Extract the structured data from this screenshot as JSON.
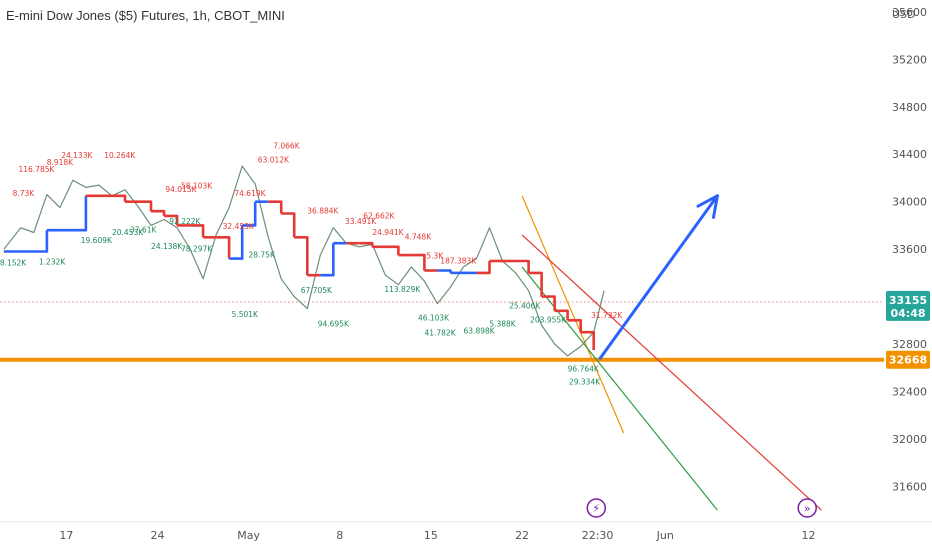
{
  "chart_data": {
    "type": "line",
    "title": "E-mini Dow Jones ($5) Futures, 1h, CBOT_MINI",
    "currency": "USD",
    "ylim": [
      31300,
      35700
    ],
    "y_ticks": [
      31600,
      32000,
      32400,
      32800,
      33200,
      33600,
      34000,
      34400,
      34800,
      35200,
      35600
    ],
    "x_ticks": [
      {
        "label": "17",
        "t": 3.5
      },
      {
        "label": "24",
        "t": 10.5
      },
      {
        "label": "May",
        "t": 17.5
      },
      {
        "label": "8",
        "t": 24.5
      },
      {
        "label": "15",
        "t": 31.5
      },
      {
        "label": "22",
        "t": 38.5
      },
      {
        "label": "22:30",
        "t": 44.3
      },
      {
        "label": "Jun",
        "t": 49.5
      },
      {
        "label": "12",
        "t": 60.5
      }
    ],
    "x_range": [
      -1.6,
      66.3
    ],
    "price": {
      "t": [
        -1.3,
        0,
        1,
        2,
        3,
        4,
        5,
        6,
        7,
        8,
        9,
        10,
        11,
        12,
        13,
        14,
        15,
        16,
        17,
        18,
        19,
        20,
        21,
        22,
        23,
        24,
        25,
        26,
        27,
        28,
        29,
        30,
        31,
        32,
        33,
        34,
        35,
        36,
        37,
        38,
        39,
        40,
        41,
        42,
        43,
        44,
        44.8
      ],
      "y": [
        33600,
        33780,
        33740,
        34060,
        33950,
        34180,
        34120,
        34140,
        34050,
        34100,
        33960,
        33800,
        33850,
        33780,
        33600,
        33350,
        33720,
        33950,
        34300,
        34150,
        33700,
        33350,
        33200,
        33100,
        33550,
        33780,
        33650,
        33620,
        33640,
        33380,
        33300,
        33450,
        33330,
        33140,
        33280,
        33450,
        33520,
        33780,
        33500,
        33400,
        33250,
        32960,
        32800,
        32700,
        32780,
        32900,
        33250
      ]
    },
    "supertrend": {
      "t": [
        -1.3,
        1,
        2,
        4,
        5,
        7,
        8,
        9.5,
        10,
        11,
        12,
        13,
        14,
        15,
        16,
        17,
        18,
        19,
        20,
        21,
        22,
        23,
        24,
        25,
        26,
        27,
        28,
        29,
        30,
        31,
        32,
        33,
        34,
        35,
        36,
        37,
        38,
        39,
        40,
        41,
        42,
        43,
        44
      ],
      "y": [
        33580,
        33580,
        33760,
        33760,
        34050,
        34050,
        34000,
        34000,
        33920,
        33880,
        33800,
        33800,
        33700,
        33700,
        33520,
        33800,
        34000,
        34000,
        33900,
        33700,
        33380,
        33380,
        33650,
        33650,
        33650,
        33620,
        33620,
        33550,
        33550,
        33420,
        33420,
        33400,
        33400,
        33400,
        33500,
        33500,
        33500,
        33400,
        33200,
        33080,
        33000,
        32900,
        32750
      ],
      "colors": [
        "#2962ff",
        "#2962ff",
        "#2962ff",
        "#2962ff",
        "#e53935",
        "#e53935",
        "#e53935",
        "#e53935",
        "#e53935",
        "#e53935",
        "#e53935",
        "#e53935",
        "#e53935",
        "#e53935",
        "#2962ff",
        "#2962ff",
        "#2962ff",
        "#e53935",
        "#e53935",
        "#e53935",
        "#e53935",
        "#2962ff",
        "#2962ff",
        "#e53935",
        "#e53935",
        "#e53935",
        "#e53935",
        "#e53935",
        "#e53935",
        "#e53935",
        "#2962ff",
        "#2962ff",
        "#2962ff",
        "#e53935",
        "#e53935",
        "#e53935",
        "#e53935",
        "#e53935",
        "#e53935",
        "#e53935",
        "#e53935",
        "#e53935"
      ]
    },
    "support_level": {
      "value": 32668,
      "label": "32668",
      "color": "#f39200"
    },
    "current_price": {
      "value": 33155,
      "label": "33155",
      "countdown": "04:48",
      "color": "#26a69a"
    },
    "projection_arrow": {
      "from": [
        44.5,
        32680
      ],
      "to": [
        53.5,
        34050
      ],
      "color": "#2962ff"
    },
    "channel_lines": [
      {
        "from": [
          38.5,
          34050
        ],
        "to": [
          46.3,
          32050
        ],
        "color": "#f39200"
      },
      {
        "from": [
          38.5,
          33450
        ],
        "to": [
          53.5,
          31400
        ],
        "color": "#2e9b3c"
      },
      {
        "from": [
          38.5,
          33720
        ],
        "to": [
          61.5,
          31400
        ],
        "color": "#e53935"
      }
    ],
    "volume_labels": [
      {
        "text": "8.73K",
        "t": 0.2,
        "y": 34050,
        "color": "#e53935"
      },
      {
        "text": "116.785K",
        "t": 1.2,
        "y": 34250,
        "color": "#e53935"
      },
      {
        "text": "8.918K",
        "t": 3.0,
        "y": 34310,
        "color": "#e53935"
      },
      {
        "text": "24.133K",
        "t": 4.3,
        "y": 34370,
        "color": "#e53935"
      },
      {
        "text": "10.264K",
        "t": 7.6,
        "y": 34370,
        "color": "#e53935"
      },
      {
        "text": "94.015K",
        "t": 12.3,
        "y": 34080,
        "color": "#e53935"
      },
      {
        "text": "58.103K",
        "t": 13.5,
        "y": 34110,
        "color": "#e53935"
      },
      {
        "text": "74.619K",
        "t": 17.6,
        "y": 34050,
        "color": "#e53935"
      },
      {
        "text": "7.066K",
        "t": 20.4,
        "y": 34450,
        "color": "#e53935"
      },
      {
        "text": "63.012K",
        "t": 19.4,
        "y": 34330,
        "color": "#e53935"
      },
      {
        "text": "32.453K",
        "t": 16.7,
        "y": 33770,
        "color": "#e53935"
      },
      {
        "text": "36.884K",
        "t": 23.2,
        "y": 33900,
        "color": "#e53935"
      },
      {
        "text": "33.491K",
        "t": 26.1,
        "y": 33810,
        "color": "#e53935"
      },
      {
        "text": "62.662K",
        "t": 27.5,
        "y": 33860,
        "color": "#e53935"
      },
      {
        "text": "24.941K",
        "t": 28.2,
        "y": 33720,
        "color": "#e53935"
      },
      {
        "text": "4.748K",
        "t": 30.5,
        "y": 33680,
        "color": "#e53935"
      },
      {
        "text": "5.3K",
        "t": 31.8,
        "y": 33520,
        "color": "#e53935"
      },
      {
        "text": "187.383K",
        "t": 33.6,
        "y": 33480,
        "color": "#e53935"
      },
      {
        "text": "31.732K",
        "t": 45.0,
        "y": 33020,
        "color": "#e53935"
      },
      {
        "text": "1.232K",
        "t": 2.4,
        "y": 33470,
        "color": "#1e8a5a"
      },
      {
        "text": "8.152K",
        "t": -0.6,
        "y": 33460,
        "color": "#1e8a5a"
      },
      {
        "text": "19.609K",
        "t": 5.8,
        "y": 33650,
        "color": "#1e8a5a"
      },
      {
        "text": "20.453K",
        "t": 8.2,
        "y": 33720,
        "color": "#1e8a5a"
      },
      {
        "text": "37.61K",
        "t": 9.4,
        "y": 33740,
        "color": "#1e8a5a"
      },
      {
        "text": "92.222K",
        "t": 12.6,
        "y": 33810,
        "color": "#1e8a5a"
      },
      {
        "text": "78.297K",
        "t": 13.5,
        "y": 33580,
        "color": "#1e8a5a"
      },
      {
        "text": "24.138K",
        "t": 11.2,
        "y": 33600,
        "color": "#1e8a5a"
      },
      {
        "text": "28.75K",
        "t": 18.5,
        "y": 33530,
        "color": "#1e8a5a"
      },
      {
        "text": "5.501K",
        "t": 17.2,
        "y": 33030,
        "color": "#1e8a5a"
      },
      {
        "text": "67.705K",
        "t": 22.7,
        "y": 33230,
        "color": "#1e8a5a"
      },
      {
        "text": "94.695K",
        "t": 24.0,
        "y": 32950,
        "color": "#1e8a5a"
      },
      {
        "text": "113.829K",
        "t": 29.3,
        "y": 33240,
        "color": "#1e8a5a"
      },
      {
        "text": "46.103K",
        "t": 31.7,
        "y": 33000,
        "color": "#1e8a5a"
      },
      {
        "text": "41.782K",
        "t": 32.2,
        "y": 32870,
        "color": "#1e8a5a"
      },
      {
        "text": "63.898K",
        "t": 35.2,
        "y": 32890,
        "color": "#1e8a5a"
      },
      {
        "text": "5.388K",
        "t": 37.0,
        "y": 32950,
        "color": "#1e8a5a"
      },
      {
        "text": "25.406K",
        "t": 38.7,
        "y": 33100,
        "color": "#1e8a5a"
      },
      {
        "text": "203.955K",
        "t": 40.5,
        "y": 32980,
        "color": "#1e8a5a"
      },
      {
        "text": "96.764K",
        "t": 43.2,
        "y": 32570,
        "color": "#1e8a5a"
      },
      {
        "text": "29.334K",
        "t": 43.3,
        "y": 32460,
        "color": "#1e8a5a"
      }
    ],
    "event_icons": [
      {
        "t": 44.2,
        "symbol": "⚡",
        "color": "#7b1fa2"
      },
      {
        "t": 60.4,
        "symbol": "»",
        "color": "#7b1fa2"
      }
    ]
  }
}
